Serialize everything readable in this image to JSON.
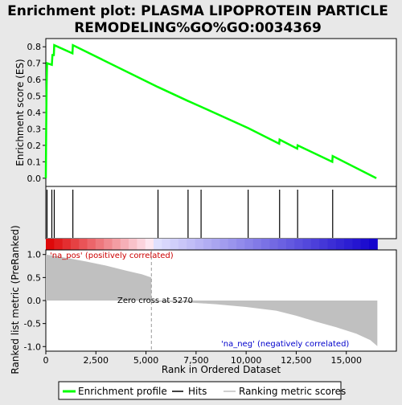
{
  "title_line1": "Enrichment plot: PLASMA LIPOPROTEIN PARTICLE",
  "title_line2": "REMODELING%GO%GO:0034369",
  "colors": {
    "es_line": "#00ff00",
    "hits": "#000000",
    "ranked_fill": "#c0c0c0",
    "panel_bg": "#ffffff",
    "page_bg": "#e8e8e8",
    "heat_pos": "#dd0000",
    "heat_neg": "#1100cc"
  },
  "chart_data": [
    {
      "type": "line",
      "name": "enrichment-profile",
      "ylabel": "Enrichment score (ES)",
      "xlim": [
        0,
        17500
      ],
      "ylim": [
        -0.05,
        0.85
      ],
      "y_ticks": [
        0.0,
        0.1,
        0.2,
        0.3,
        0.4,
        0.5,
        0.6,
        0.7,
        0.8
      ],
      "y_tick_labels": [
        "0.0",
        "0.1",
        "0.2",
        "0.3",
        "0.4",
        "0.5",
        "0.6",
        "0.7",
        "0.8"
      ],
      "grid": false,
      "points": [
        [
          0,
          0.0
        ],
        [
          20,
          0.32
        ],
        [
          40,
          0.57
        ],
        [
          60,
          0.7
        ],
        [
          300,
          0.69
        ],
        [
          330,
          0.75
        ],
        [
          400,
          0.75
        ],
        [
          420,
          0.81
        ],
        [
          1330,
          0.76
        ],
        [
          1350,
          0.81
        ],
        [
          5600,
          0.555
        ],
        [
          7100,
          0.47
        ],
        [
          7750,
          0.435
        ],
        [
          10100,
          0.305
        ],
        [
          11650,
          0.21
        ],
        [
          11670,
          0.235
        ],
        [
          12550,
          0.18
        ],
        [
          12570,
          0.2
        ],
        [
          14300,
          0.1
        ],
        [
          14320,
          0.135
        ],
        [
          16500,
          0.0
        ]
      ],
      "hits_x": [
        60,
        300,
        420,
        1350,
        5600,
        7100,
        7750,
        10100,
        11670,
        12570,
        14320
      ]
    },
    {
      "type": "area",
      "name": "ranked-list-metric",
      "xlabel": "Rank in Ordered Dataset",
      "ylabel": "Ranked list metric (PreRanked)",
      "xlim": [
        0,
        17500
      ],
      "ylim": [
        -1.1,
        1.1
      ],
      "x_ticks": [
        0,
        2500,
        5000,
        7500,
        10000,
        12500,
        15000
      ],
      "x_tick_labels": [
        "0",
        "2,500",
        "5,000",
        "7,500",
        "10,000",
        "12,500",
        "15,000"
      ],
      "y_ticks": [
        -1.0,
        -0.5,
        0.0,
        0.5,
        1.0
      ],
      "y_tick_labels": [
        "-1.0",
        "-0.5",
        "0.0",
        "0.5",
        "1.0"
      ],
      "points": [
        [
          0,
          1.0
        ],
        [
          300,
          0.98
        ],
        [
          1000,
          0.93
        ],
        [
          2000,
          0.85
        ],
        [
          3000,
          0.76
        ],
        [
          4000,
          0.65
        ],
        [
          4800,
          0.57
        ],
        [
          5270,
          0.5
        ],
        [
          5272,
          -0.02
        ],
        [
          7000,
          -0.04
        ],
        [
          8500,
          -0.08
        ],
        [
          10000,
          -0.14
        ],
        [
          11500,
          -0.22
        ],
        [
          12500,
          -0.33
        ],
        [
          13500,
          -0.46
        ],
        [
          14500,
          -0.58
        ],
        [
          15500,
          -0.72
        ],
        [
          16200,
          -0.86
        ],
        [
          16550,
          -0.99
        ]
      ],
      "annotations": {
        "pos_label": "'na_pos' (positively correlated)",
        "zero_cross": "Zero cross at 5270",
        "neg_label": "'na_neg' (negatively correlated)"
      }
    }
  ],
  "legend": {
    "enrichment_profile": "Enrichment profile",
    "hits": "Hits",
    "ranking_metric": "Ranking metric scores"
  }
}
